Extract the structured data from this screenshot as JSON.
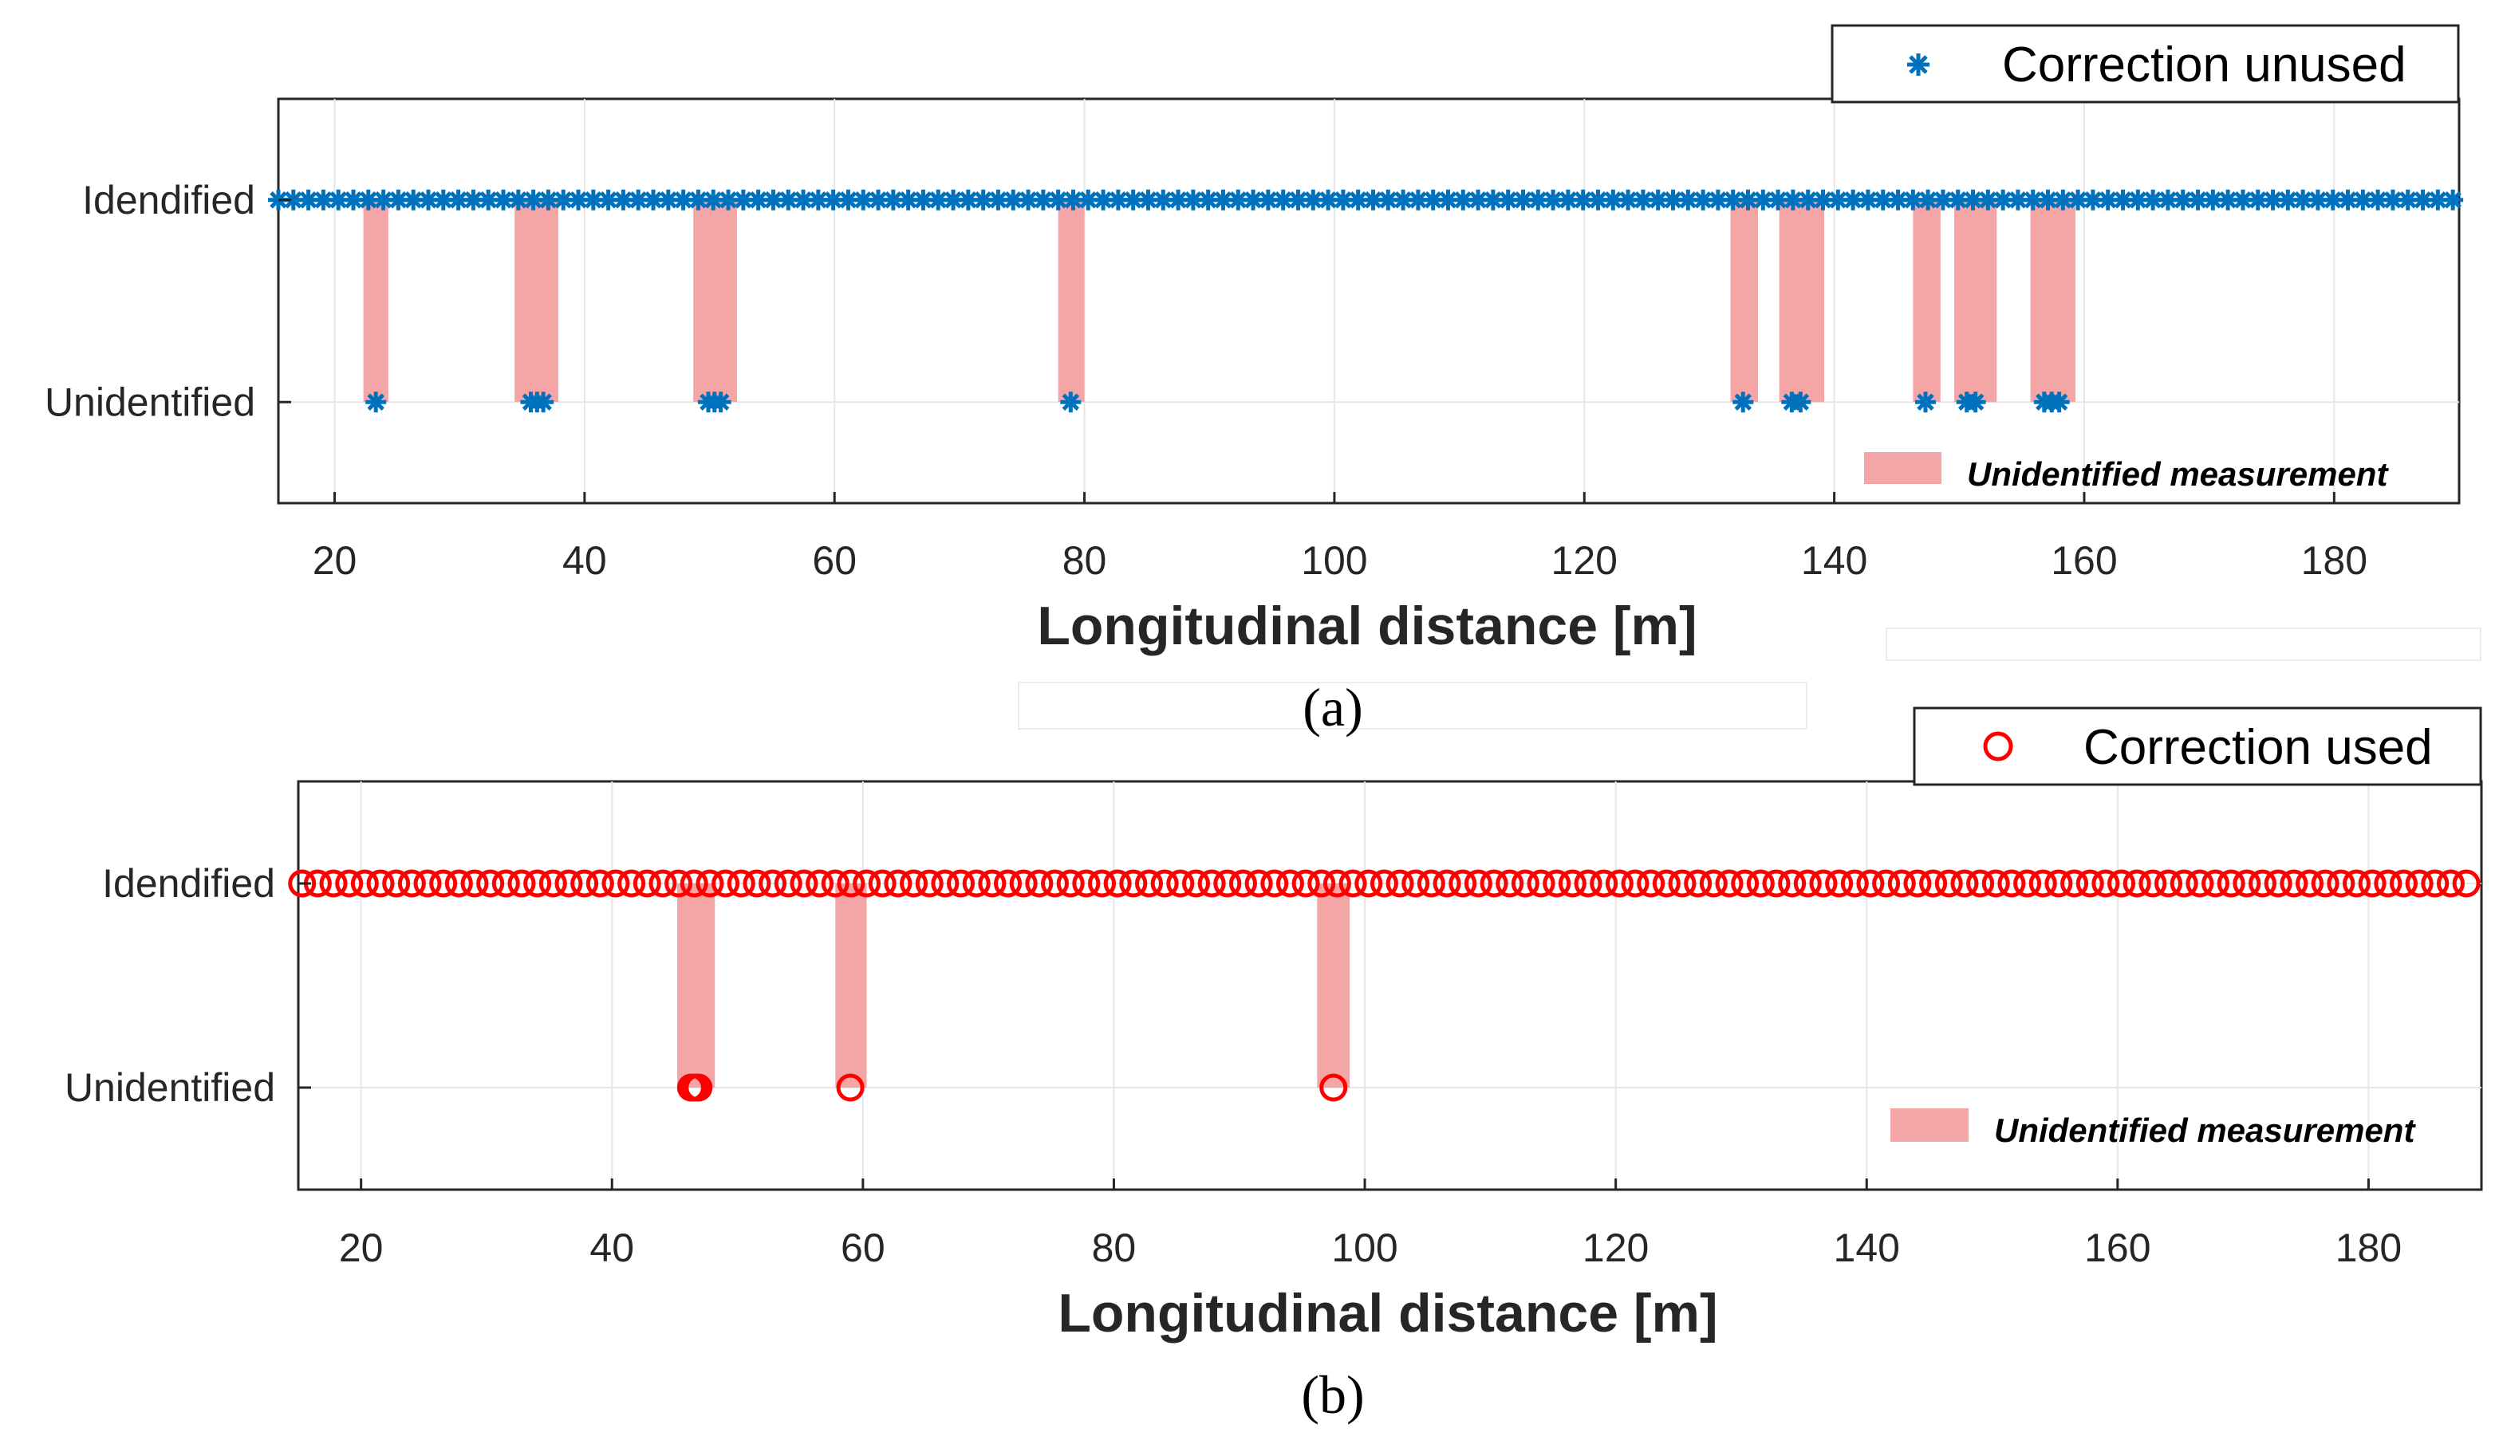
{
  "colors": {
    "series_a": "#0072BD",
    "series_b": "#FF0000",
    "band": "#F4A6A6",
    "grid": "#E6E6E6",
    "axis": "#262626"
  },
  "chart_data": [
    {
      "panel": "a",
      "type": "scatter",
      "caption": "(a)",
      "xlabel": "Longitudinal distance [m]",
      "xlim": [
        15.5,
        190
      ],
      "xticks": [
        20,
        40,
        60,
        80,
        100,
        120,
        140,
        160,
        180
      ],
      "ylim": [
        -0.5,
        1.5
      ],
      "yticks": [
        {
          "value": 0,
          "label": "Unidentified"
        },
        {
          "value": 1,
          "label": "Idendified"
        }
      ],
      "grid": true,
      "legend": {
        "position": "top-right, outside above axes",
        "label": "Correction unused",
        "marker": "asterisk",
        "icon": "asterisk-icon"
      },
      "band_legend": {
        "position": "bottom-right",
        "label": "Unidentified measurement"
      },
      "identified_step": 1.2,
      "identified_x_start": 15.5,
      "identified_x_end": 189.5,
      "unidentified_x": [
        23.3,
        35.7,
        36.2,
        36.7,
        49.9,
        50.4,
        50.9,
        78.9,
        132.7,
        136.6,
        137.3,
        147.3,
        150.6,
        151.3,
        156.8,
        157.4,
        158.0
      ],
      "bands": [
        [
          22.3,
          24.3
        ],
        [
          34.4,
          37.9
        ],
        [
          48.7,
          52.2
        ],
        [
          77.9,
          80.0
        ],
        [
          131.7,
          133.9
        ],
        [
          135.6,
          139.2
        ],
        [
          146.3,
          148.5
        ],
        [
          149.6,
          153.0
        ],
        [
          155.7,
          159.3
        ]
      ]
    },
    {
      "panel": "b",
      "type": "scatter",
      "caption": "(b)",
      "xlabel": "Longitudinal distance [m]",
      "xlim": [
        15,
        189
      ],
      "xticks": [
        20,
        40,
        60,
        80,
        100,
        120,
        140,
        160,
        180
      ],
      "ylim": [
        -0.5,
        1.5
      ],
      "yticks": [
        {
          "value": 0,
          "label": "Unidentified"
        },
        {
          "value": 1,
          "label": "Idendified"
        }
      ],
      "grid": true,
      "legend": {
        "position": "top-right, outside above axes",
        "label": "Correction used",
        "marker": "circle",
        "icon": "circle-icon"
      },
      "band_legend": {
        "position": "bottom-right",
        "label": "Unidentified measurement"
      },
      "identified_step": 1.25,
      "identified_x_start": 15.3,
      "identified_x_end": 188.5,
      "unidentified_x": [
        46.3,
        46.6,
        46.9,
        59.0,
        97.5
      ],
      "bands": [
        [
          45.2,
          48.2
        ],
        [
          57.8,
          60.3
        ],
        [
          96.2,
          98.8
        ]
      ]
    }
  ]
}
